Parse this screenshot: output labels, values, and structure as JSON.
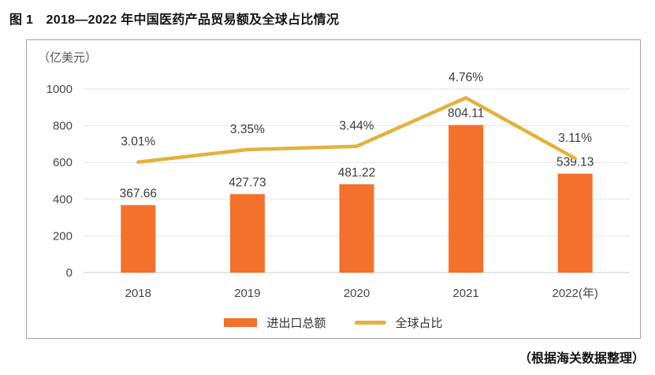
{
  "source_note": "（根据海关数据整理）",
  "chart_data": {
    "type": "combo",
    "title": "图 1　2018—2022 年中国医药产品贸易额及全球占比情况",
    "categories": [
      "2018",
      "2019",
      "2020",
      "2021",
      "2022(年)"
    ],
    "series": [
      {
        "name": "进出口总额",
        "type": "bar",
        "unit": "亿美元",
        "color": "#F3712B",
        "values": [
          367.66,
          427.73,
          481.22,
          804.11,
          539.13
        ]
      },
      {
        "name": "全球占比",
        "type": "line",
        "unit": "%",
        "color": "#E2B23B",
        "values": [
          3.01,
          3.35,
          3.44,
          4.76,
          3.11
        ]
      }
    ],
    "ylabel": "（亿美元）",
    "ylim": [
      0,
      1000
    ],
    "yticks": [
      0,
      200,
      400,
      600,
      800,
      1000
    ],
    "pct_axis_factor": 200,
    "grid": true,
    "legend_position": "bottom"
  }
}
